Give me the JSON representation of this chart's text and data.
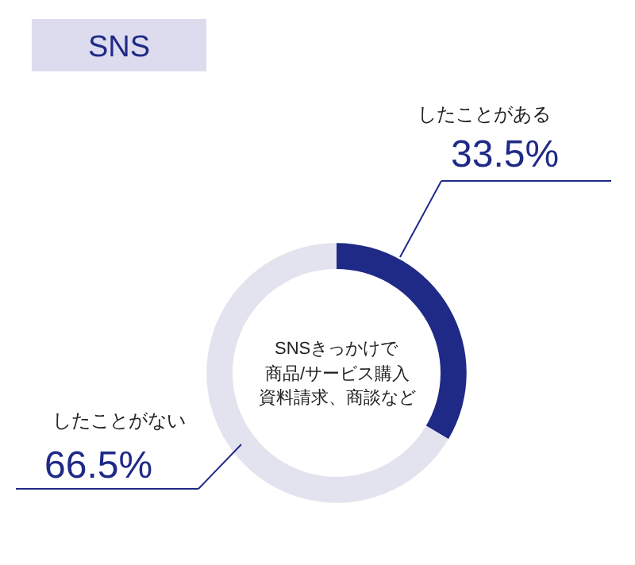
{
  "chart_data": {
    "type": "donut",
    "title": "SNS",
    "categories": [
      "したことがある",
      "したことがない"
    ],
    "values": [
      33.5,
      66.5
    ],
    "value_labels": [
      "33.5%",
      "66.5%"
    ],
    "colors": [
      "#1f2a87",
      "#e3e3ef"
    ],
    "annotations": [
      "SNSきっかけで",
      "商品/サービス購入",
      "資料請求、商談など"
    ],
    "legend": false
  }
}
